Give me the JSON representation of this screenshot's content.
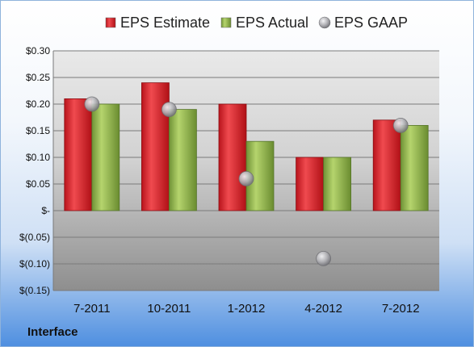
{
  "company": "Interface",
  "colors": {
    "estimate": "#d0202a",
    "actual": "#8cb04a",
    "gaap": "#a9a9ad"
  },
  "chart_data": {
    "type": "bar",
    "categories": [
      "7-2011",
      "10-2011",
      "1-2012",
      "4-2012",
      "7-2012"
    ],
    "series": [
      {
        "name": "EPS Estimate",
        "kind": "bar",
        "values": [
          0.21,
          0.24,
          0.2,
          0.1,
          0.17
        ]
      },
      {
        "name": "EPS Actual",
        "kind": "bar",
        "values": [
          0.2,
          0.19,
          0.13,
          0.1,
          0.16
        ]
      },
      {
        "name": "EPS GAAP",
        "kind": "marker",
        "values": [
          0.2,
          0.19,
          0.06,
          -0.09,
          0.16
        ]
      }
    ],
    "ylim": [
      -0.15,
      0.3
    ],
    "yticks": [
      0.3,
      0.25,
      0.2,
      0.15,
      0.1,
      0.05,
      0,
      -0.05,
      -0.1,
      -0.15
    ],
    "ytick_labels": [
      "$0.30",
      "$0.25",
      "$0.20",
      "$0.15",
      "$0.10",
      "$0.05",
      "$-",
      "$(0.05)",
      "$(0.10)",
      "$(0.15)"
    ],
    "legend_position": "top",
    "grid": true
  }
}
